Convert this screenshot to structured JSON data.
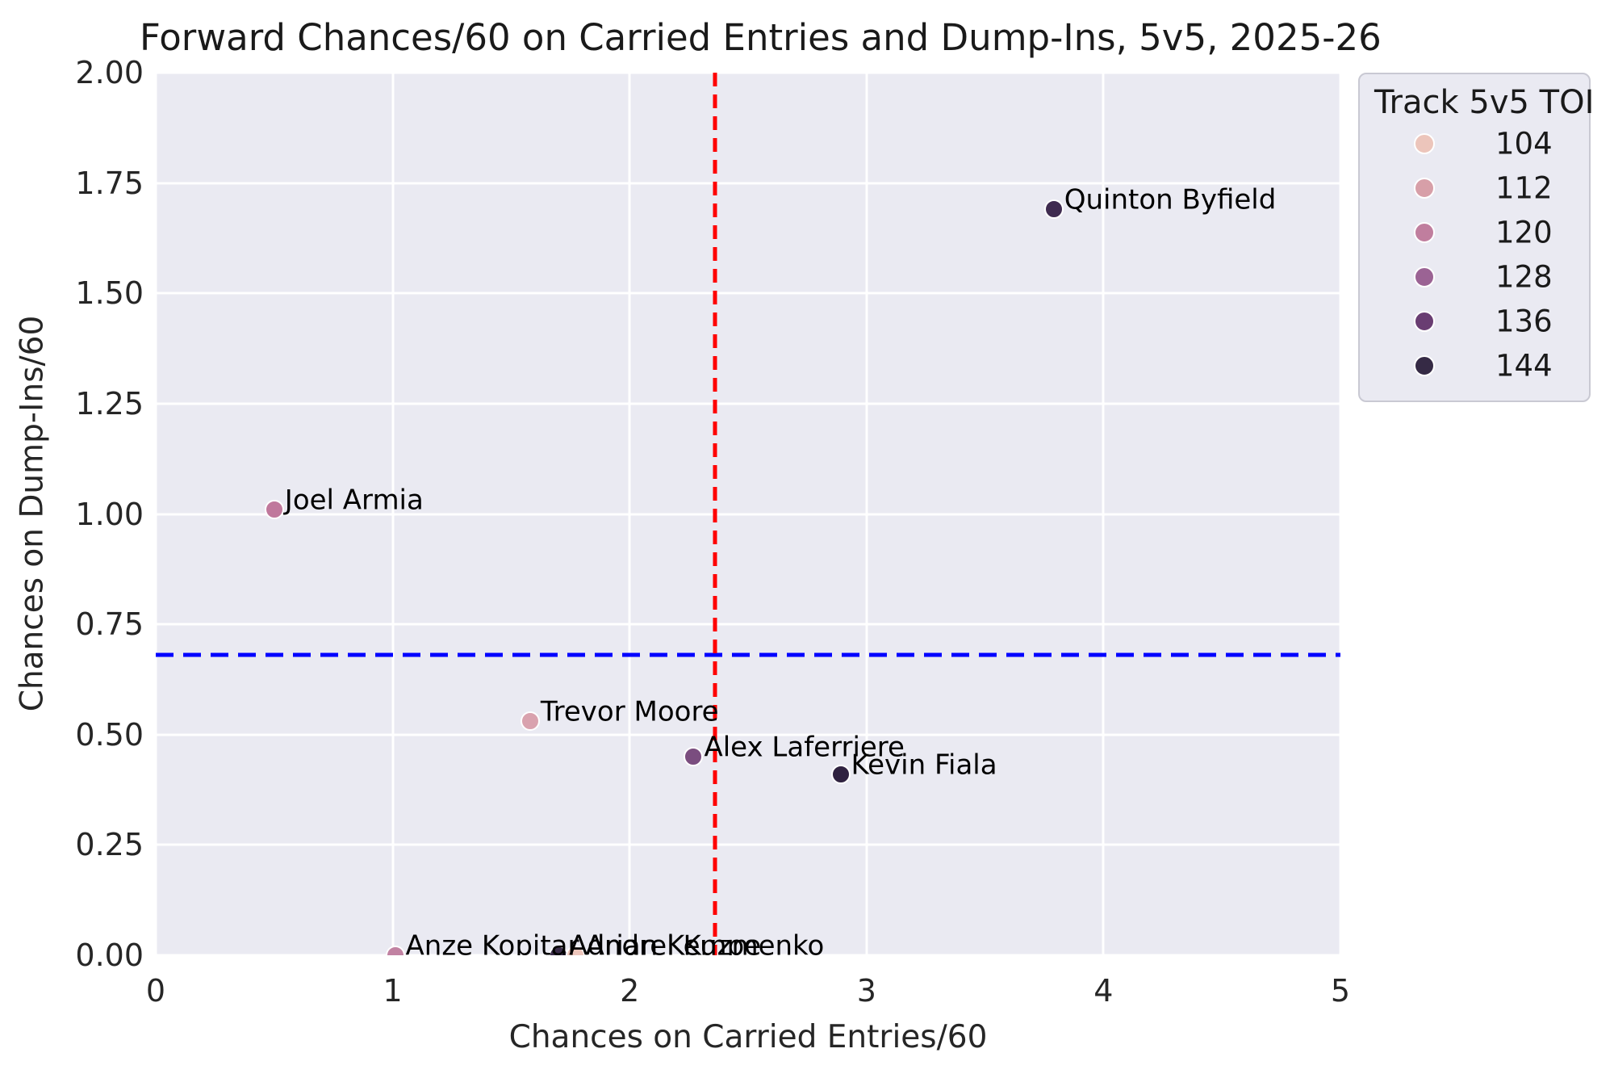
{
  "chart_data": {
    "type": "scatter",
    "title": "Forward Chances/60 on Carried Entries and Dump-Ins, 5v5, 2025-26",
    "xlabel": "Chances on Carried Entries/60",
    "ylabel": "Chances on Dump-Ins/60",
    "xlim": [
      0,
      5
    ],
    "ylim": [
      0,
      2
    ],
    "x_ticks": [
      {
        "value": 0,
        "label": "0"
      },
      {
        "value": 1,
        "label": "1"
      },
      {
        "value": 2,
        "label": "2"
      },
      {
        "value": 3,
        "label": "3"
      },
      {
        "value": 4,
        "label": "4"
      },
      {
        "value": 5,
        "label": "5"
      }
    ],
    "y_ticks": [
      {
        "value": 0.0,
        "label": "0.00"
      },
      {
        "value": 0.25,
        "label": "0.25"
      },
      {
        "value": 0.5,
        "label": "0.50"
      },
      {
        "value": 0.75,
        "label": "0.75"
      },
      {
        "value": 1.0,
        "label": "1.00"
      },
      {
        "value": 1.25,
        "label": "1.25"
      },
      {
        "value": 1.5,
        "label": "1.50"
      },
      {
        "value": 1.75,
        "label": "1.75"
      },
      {
        "value": 2.0,
        "label": "2.00"
      }
    ],
    "grid": true,
    "plot_background": "#eaeaf2",
    "grid_color": "#ffffff",
    "points": [
      {
        "name": "Quinton Byfield",
        "x": 3.79,
        "y": 1.69,
        "color": "#3f2b50"
      },
      {
        "name": "Joel Armia",
        "x": 0.5,
        "y": 1.01,
        "color": "#c0789c"
      },
      {
        "name": "Trevor Moore",
        "x": 1.58,
        "y": 0.53,
        "color": "#d9a2ae"
      },
      {
        "name": "Alex Laferriere",
        "x": 2.27,
        "y": 0.45,
        "color": "#7a4d7f"
      },
      {
        "name": "Kevin Fiala",
        "x": 2.89,
        "y": 0.41,
        "color": "#2f2240"
      },
      {
        "name": "Anze Kopitar",
        "x": 1.01,
        "y": 0.0,
        "color": "#c182a2"
      },
      {
        "name": "Adrian Kempe",
        "x": 1.7,
        "y": 0.0,
        "color": "#3a2c49"
      },
      {
        "name": "Andrei Kuzmenko",
        "x": 1.77,
        "y": 0.0,
        "color": "#edc6bc"
      }
    ],
    "reference_lines": [
      {
        "orientation": "horizontal",
        "value": 0.68,
        "color": "#0000ff",
        "style": "dashed"
      },
      {
        "orientation": "vertical",
        "value": 2.36,
        "color": "#ff0000",
        "style": "dashed"
      }
    ],
    "legend": {
      "title": "Track 5v5 TOI",
      "position": "outside upper right",
      "items": [
        {
          "label": "104",
          "color": "#ecc5bb"
        },
        {
          "label": "112",
          "color": "#d79fa8"
        },
        {
          "label": "120",
          "color": "#c07e9e"
        },
        {
          "label": "128",
          "color": "#9b6394"
        },
        {
          "label": "136",
          "color": "#693d72"
        },
        {
          "label": "144",
          "color": "#352a45"
        }
      ]
    }
  }
}
